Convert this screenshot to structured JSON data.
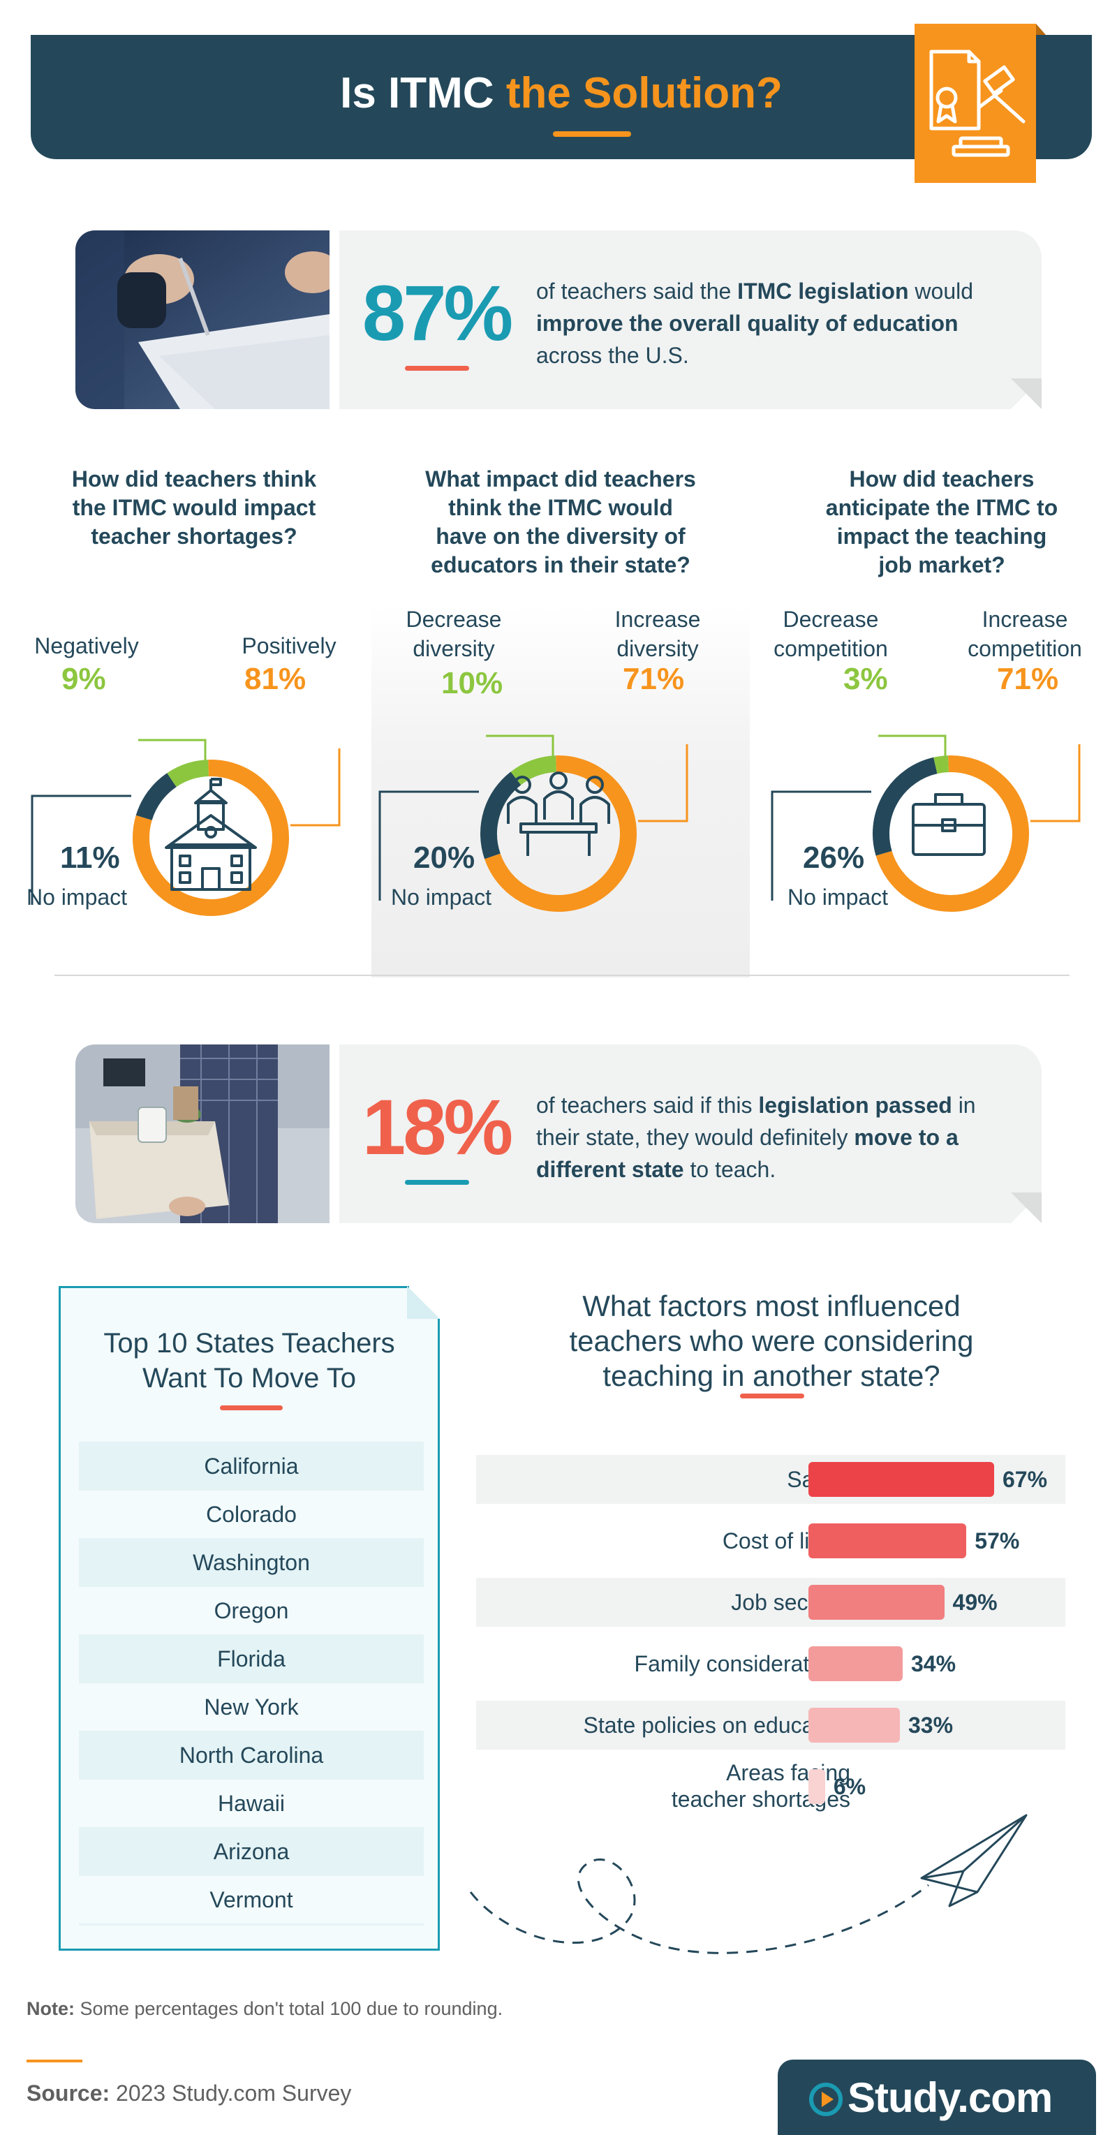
{
  "header": {
    "title_part1": "Is ITMC",
    "title_part2": "the Solution?",
    "badge_icon": "gavel-certificate-icon",
    "colors": {
      "navy": "#24485a",
      "orange": "#f7941d",
      "green": "#8cc63f",
      "teal": "#1a9bb2",
      "coral": "#f0614c"
    }
  },
  "stat1": {
    "number": "87%",
    "text_1": "of teachers said the ",
    "bold_1": "ITMC legislation",
    "text_2": " would ",
    "bold_2": "improve the overall quality of education",
    "text_3": " across the U.S."
  },
  "stat2": {
    "number": "18%",
    "text_1": "of teachers said if this ",
    "bold_1": "legislation passed",
    "text_2": " in their state, they would definitely ",
    "bold_2": "move to a different state",
    "text_3": " to teach."
  },
  "chart_data": [
    {
      "type": "pie",
      "title": "How did teachers think the ITMC would impact teacher shortages?",
      "labels": [
        "Positively",
        "Negatively",
        "No impact"
      ],
      "values": [
        81,
        9,
        11
      ],
      "label_texts": [
        "81%",
        "9%",
        "11%"
      ],
      "colors": [
        "#f7941d",
        "#8cc63f",
        "#24485a"
      ],
      "icon": "school-building-icon"
    },
    {
      "type": "pie",
      "title": "What impact did teachers think the ITMC would have on the diversity of educators in their state?",
      "labels": [
        "Increase diversity",
        "Decrease diversity",
        "No impact"
      ],
      "values": [
        71,
        10,
        20
      ],
      "label_texts": [
        "71%",
        "10%",
        "20%"
      ],
      "colors": [
        "#f7941d",
        "#8cc63f",
        "#24485a"
      ],
      "icon": "educators-group-icon"
    },
    {
      "type": "pie",
      "title": "How did teachers anticipate the ITMC to impact the teaching job market?",
      "labels": [
        "Increase competition",
        "Decrease competition",
        "No impact"
      ],
      "values": [
        71,
        3,
        26
      ],
      "label_texts": [
        "71%",
        "3%",
        "26%"
      ],
      "colors": [
        "#f7941d",
        "#8cc63f",
        "#24485a"
      ],
      "icon": "briefcase-icon"
    },
    {
      "type": "bar",
      "title": "What factors most influenced teachers who were considering teaching in another state?",
      "categories": [
        "Salary",
        "Cost of living",
        "Job security",
        "Family considerations",
        "State policies on education",
        "Areas facing teacher shortages"
      ],
      "values": [
        67,
        57,
        49,
        34,
        33,
        6
      ],
      "value_labels": [
        "67%",
        "57%",
        "49%",
        "34%",
        "33%",
        "6%"
      ],
      "colors": [
        "#ec4349",
        "#ef5f60",
        "#f17f7f",
        "#f39b9b",
        "#f6b6b6",
        "#f9d2d2"
      ],
      "orientation": "horizontal",
      "ylim": [
        0,
        100
      ]
    }
  ],
  "donuts": [
    {
      "q": [
        "How did teachers think",
        "the ITMC would impact",
        "teacher shortages?"
      ],
      "pos_label": [
        "Positively"
      ],
      "neg_label": [
        "Negatively"
      ],
      "none_label": "No impact"
    },
    {
      "q": [
        "What impact did teachers",
        "think the ITMC would",
        "have on the diversity of",
        "educators in their state?"
      ],
      "pos_label": [
        "Increase",
        "diversity"
      ],
      "neg_label": [
        "Decrease",
        "diversity"
      ],
      "none_label": "No impact"
    },
    {
      "q": [
        "How did teachers",
        "anticipate the ITMC to",
        "impact the teaching",
        "job market?"
      ],
      "pos_label": [
        "Increase",
        "competition"
      ],
      "neg_label": [
        "Decrease",
        "competition"
      ],
      "none_label": "No impact"
    }
  ],
  "states": {
    "title_line1": "Top 10 States Teachers",
    "title_line2": "Want To Move To",
    "items": [
      "California",
      "Colorado",
      "Washington",
      "Oregon",
      "Florida",
      "New York",
      "North Carolina",
      "Hawaii",
      "Arizona",
      "Vermont"
    ]
  },
  "factors": {
    "title_line1": "What factors most influenced",
    "title_line2": "teachers who were considering",
    "title_line3": "teaching in another state?",
    "last_label_line1": "Areas facing",
    "last_label_line2": "teacher shortages"
  },
  "footer": {
    "note_label": "Note:",
    "note_text": " Some percentages don't total 100 due to rounding.",
    "source_label": "Source:",
    "source_text": " 2023 Study.com Survey",
    "logo_text": "Study.com"
  }
}
